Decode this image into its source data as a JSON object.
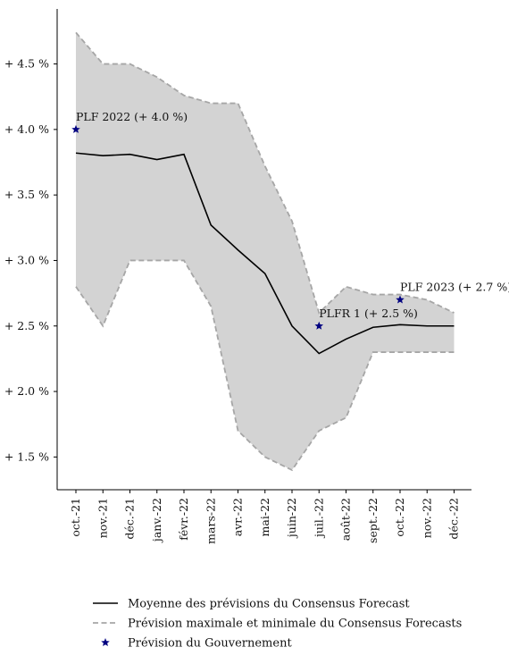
{
  "chart_data": {
    "type": "line",
    "categories": [
      "oct.-21",
      "nov.-21",
      "déc.-21",
      "janv.-22",
      "févr.-22",
      "mars-22",
      "avr.-22",
      "mai-22",
      "juin-22",
      "juil.-22",
      "août-22",
      "sept.-22",
      "oct.-22",
      "nov.-22",
      "déc.-22"
    ],
    "ylim": [
      1.25,
      4.92
    ],
    "yticks": [
      1.5,
      2.0,
      2.5,
      3.0,
      3.5,
      4.0,
      4.5
    ],
    "ytick_labels": [
      "+ 1.5 %",
      "+ 2.0 %",
      "+ 2.5 %",
      "+ 3.0 %",
      "+ 3.5 %",
      "+ 4.0 %",
      "+ 4.5 %"
    ],
    "series": [
      {
        "name": "Moyenne des prévisions du Consensus Forecast",
        "style": "solid",
        "color": "#000000",
        "values": [
          3.82,
          3.8,
          3.81,
          3.77,
          3.81,
          3.27,
          3.08,
          2.9,
          2.5,
          2.29,
          2.4,
          2.49,
          2.51,
          2.5,
          2.5
        ]
      },
      {
        "name": "Prévision maximale et minimale du Consensus Forecasts",
        "style": "dashed",
        "color": "#a6a6a6",
        "fill": "#d3d3d3",
        "max": [
          4.74,
          4.5,
          4.5,
          4.4,
          4.26,
          4.2,
          4.2,
          3.72,
          3.3,
          2.6,
          2.8,
          2.74,
          2.74,
          2.7,
          2.6
        ],
        "min": [
          2.8,
          2.5,
          3.0,
          3.0,
          3.0,
          2.65,
          1.7,
          1.5,
          1.4,
          1.7,
          1.8,
          2.3,
          2.3,
          2.3,
          2.3
        ]
      },
      {
        "name": "Prévision du Gouvernement",
        "style": "star",
        "color": "#000080",
        "points": [
          {
            "x": "oct.-21",
            "y": 4.0,
            "label": "PLF 2022 (+ 4.0 %)"
          },
          {
            "x": "juil.-22",
            "y": 2.5,
            "label": "PLFR 1 (+ 2.5 %)"
          },
          {
            "x": "oct.-22",
            "y": 2.7,
            "label": "PLF 2023 (+ 2.7 %)"
          }
        ]
      }
    ],
    "legend_position": "bottom",
    "grid": false
  }
}
